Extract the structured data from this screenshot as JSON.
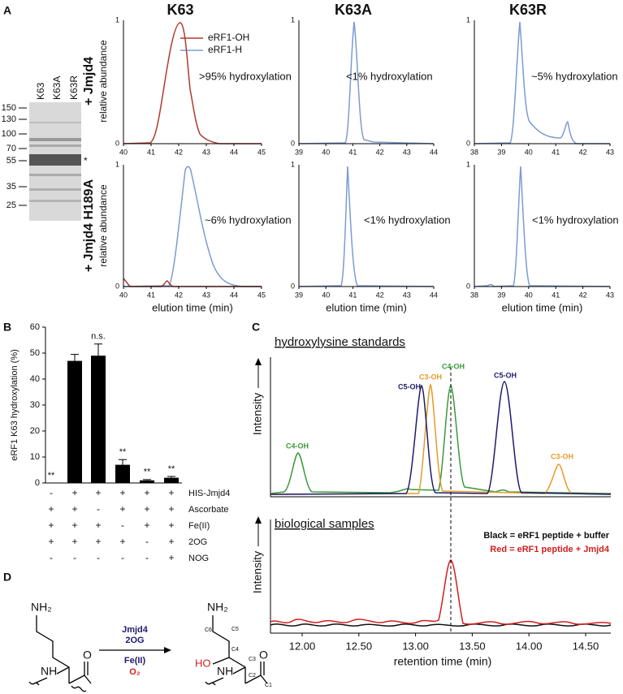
{
  "panel_labels": [
    "A",
    "B",
    "C",
    "D"
  ],
  "panel_a": {
    "columns": [
      "K63",
      "K63A",
      "K63R"
    ],
    "rows": [
      "+ Jmjd4",
      "+ Jmjd4 H189A"
    ],
    "y_label": "relative abundance",
    "y_ticks": [
      "0",
      "1"
    ],
    "x_label": "elution time (min)",
    "legend": [
      "eRF1-OH",
      "eRF1-H"
    ],
    "annotations": [
      [
        ">95% hydroxylation",
        "<1% hydroxylation",
        "~5% hydroxylation"
      ],
      [
        "~6% hydroxylation",
        "<1% hydroxylation",
        "<1% hydroxylation"
      ]
    ],
    "x_ticks": [
      [
        "40",
        "41",
        "42",
        "43",
        "44",
        "45"
      ],
      [
        "39",
        "40",
        "41",
        "42",
        "43",
        "44"
      ],
      [
        "38",
        "39",
        "40",
        "41",
        "42",
        "43"
      ]
    ],
    "gel": {
      "marker_labels": [
        "150",
        "130",
        "100",
        "70",
        "55",
        "35",
        "25"
      ],
      "lanes": [
        "K63",
        "K63A",
        "K63R"
      ],
      "star": "*"
    }
  },
  "chart_data": {
    "type": "bar",
    "y_label": "eRF1 K63 hydroxylation (%)",
    "values": [
      0,
      47,
      49,
      7,
      1,
      2
    ],
    "errors": [
      0,
      2.5,
      4.5,
      2,
      0.3,
      0.5
    ],
    "significance": [
      "**",
      null,
      "n.s.",
      "**",
      "**",
      "**"
    ],
    "color": "#000000",
    "ylim": [
      0,
      60
    ],
    "yticks": [
      0,
      10,
      20,
      30,
      40,
      50,
      60
    ]
  },
  "panel_b_conditions": [
    {
      "label": "HIS-Jmjd4",
      "marks": [
        "-",
        "+",
        "+",
        "+",
        "+",
        "+"
      ]
    },
    {
      "label": "Ascorbate",
      "marks": [
        "+",
        "+",
        "-",
        "+",
        "+",
        "+"
      ]
    },
    {
      "label": "Fe(II)",
      "marks": [
        "+",
        "+",
        "+",
        "-",
        "+",
        "+"
      ]
    },
    {
      "label": "2OG",
      "marks": [
        "+",
        "+",
        "+",
        "+",
        "-",
        "+"
      ]
    },
    {
      "label": "NOG",
      "marks": [
        "-",
        "-",
        "-",
        "-",
        "-",
        "+"
      ]
    }
  ],
  "panel_c": {
    "top_title": "hydroxylysine standards",
    "bottom_title": "biological samples",
    "y_label": "Intensity",
    "peak_labels": [
      "C4-OH",
      "C5-OH",
      "C3-OH",
      "C4-OH",
      "C5-OH",
      "C3-OH"
    ],
    "legend": [
      "Black = eRF1 peptide + buffer",
      "Red = eRF1 peptide + Jmjd4"
    ],
    "x_ticks": [
      "12.00",
      "12.50",
      "13.00",
      "13.50",
      "14.00",
      "14.50"
    ],
    "x_label": "retention time (min)"
  },
  "panel_d": {
    "reactant_amine": "NH₂",
    "reactant_nh": "NH",
    "reactant_o": "O",
    "enzyme": "Jmjd4",
    "cosubstrate": "2OG",
    "cofactor": "Fe(II)",
    "oxygen": "O₂",
    "product_amine": "NH₂",
    "product_hydroxyl": "HO",
    "product_nh": "NH",
    "product_o": "O",
    "carbons": [
      "C6",
      "C5",
      "C4",
      "C3",
      "C2",
      "C1"
    ]
  }
}
